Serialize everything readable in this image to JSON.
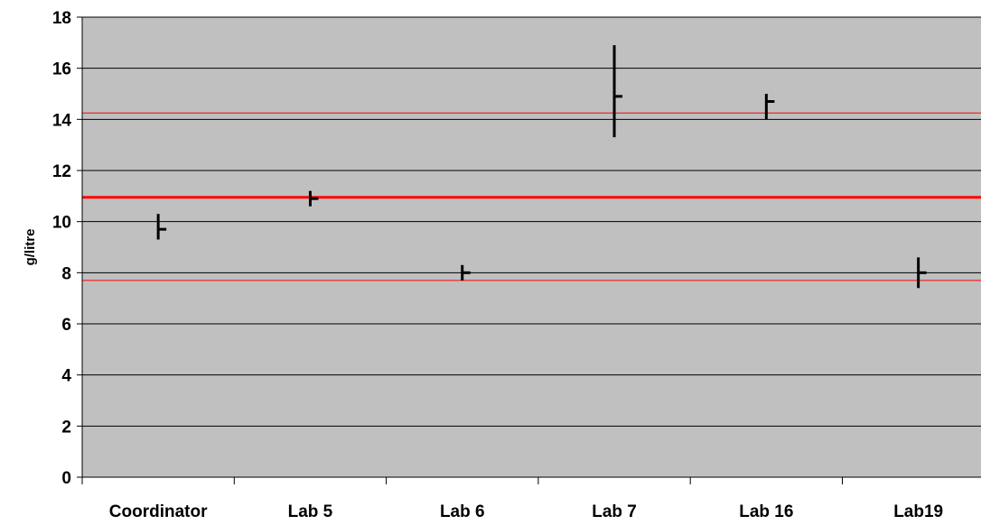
{
  "chart_data": {
    "type": "stock",
    "title": "",
    "xlabel": "",
    "ylabel": "g/litre",
    "categories": [
      "Coordinator",
      "Lab 5",
      "Lab 6",
      "Lab 7",
      "Lab 16",
      "Lab19"
    ],
    "series": [
      {
        "name": "",
        "high": [
          10.3,
          11.2,
          8.3,
          16.9,
          15.0,
          8.6
        ],
        "low": [
          9.3,
          10.6,
          7.7,
          13.3,
          14.0,
          7.4
        ],
        "value": [
          9.7,
          10.9,
          8.0,
          14.9,
          14.7,
          8.0
        ]
      }
    ],
    "reference_lines": [
      {
        "value": 10.95,
        "color": "#ff0000",
        "style": "thick"
      },
      {
        "value": 14.25,
        "color": "#ff0000",
        "style": "thin"
      },
      {
        "value": 7.7,
        "color": "#ff0000",
        "style": "thin"
      }
    ],
    "ylim": [
      0,
      18
    ],
    "yticks": [
      0,
      2,
      4,
      6,
      8,
      10,
      12,
      14,
      16,
      18
    ],
    "grid": true,
    "legend": "none",
    "colors": {
      "plot_background": "#c0c0c0",
      "gridline": "#000000",
      "marker": "#000000",
      "reference": "#ff0000"
    }
  }
}
